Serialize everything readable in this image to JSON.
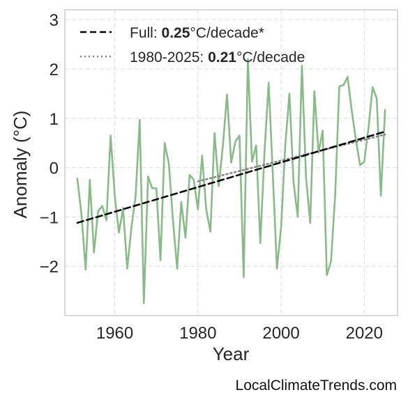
{
  "chart_data": {
    "type": "line",
    "xlabel": "Year",
    "ylabel": "Anomaly (°C)",
    "xlim": [
      1948,
      2028
    ],
    "ylim": [
      -3,
      3.2
    ],
    "xticks": [
      "1960",
      "1980",
      "2000",
      "2020"
    ],
    "xtick_values": [
      1960,
      1980,
      2000,
      2020
    ],
    "yticks": [
      "3",
      "2",
      "1",
      "0",
      "−1",
      "−2"
    ],
    "ytick_values": [
      3,
      2,
      1,
      0,
      -1,
      -2
    ],
    "grid": true,
    "legend_position": "top-left",
    "series": [
      {
        "kind": "data",
        "color": "#88bb88",
        "x": [
          1951,
          1952,
          1953,
          1954,
          1955,
          1956,
          1957,
          1958,
          1959,
          1960,
          1961,
          1962,
          1963,
          1964,
          1965,
          1966,
          1967,
          1968,
          1969,
          1970,
          1971,
          1972,
          1973,
          1974,
          1975,
          1976,
          1977,
          1978,
          1979,
          1980,
          1981,
          1982,
          1983,
          1984,
          1985,
          1986,
          1987,
          1988,
          1989,
          1990,
          1991,
          1992,
          1993,
          1994,
          1995,
          1996,
          1997,
          1998,
          1999,
          2000,
          2001,
          2002,
          2003,
          2004,
          2005,
          2006,
          2007,
          2008,
          2009,
          2010,
          2011,
          2012,
          2013,
          2014,
          2015,
          2016,
          2017,
          2018,
          2019,
          2020,
          2021,
          2022,
          2023,
          2024,
          2025
        ],
        "values": [
          -0.22,
          -0.95,
          -2.07,
          -0.25,
          -1.72,
          -0.88,
          -0.78,
          -1.07,
          0.65,
          -0.58,
          -1.32,
          -0.82,
          -2.05,
          -1.22,
          -0.58,
          0.97,
          -2.75,
          -0.18,
          -0.42,
          -0.42,
          -1.88,
          0.5,
          0.08,
          -1.07,
          -2.05,
          -0.7,
          -1.42,
          -0.15,
          -0.25,
          -0.85,
          0.24,
          -0.85,
          -1.3,
          0.7,
          -0.38,
          0.45,
          1.48,
          0.1,
          0.53,
          0.65,
          -2.22,
          2.2,
          0.12,
          0.45,
          -1.53,
          0.3,
          1.72,
          -0.12,
          -2.05,
          -1.2,
          0.45,
          1.5,
          -0.3,
          -1.0,
          2.07,
          -0.2,
          -1.12,
          1.55,
          0.3,
          0.75,
          -2.18,
          -1.9,
          -0.55,
          1.65,
          1.67,
          1.84,
          1.15,
          0.55,
          0.05,
          0.12,
          0.8,
          1.63,
          1.4,
          -0.57,
          1.17
        ]
      },
      {
        "name": "Full:",
        "kind": "trend",
        "rate": "0.25",
        "unit": "°C/decade*",
        "color": "#000000",
        "x": [
          1951,
          2025
        ],
        "values": [
          -1.12,
          0.73
        ]
      },
      {
        "name": "1980-2025:",
        "kind": "trend",
        "rate": "0.21",
        "unit": "°C/decade",
        "color": "#808080",
        "x": [
          1980,
          2025
        ],
        "values": [
          -0.28,
          0.67
        ]
      }
    ]
  },
  "watermark": "LocalClimateTrends.com"
}
